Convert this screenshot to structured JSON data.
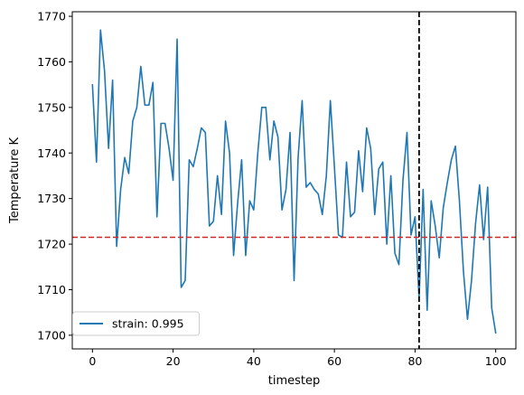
{
  "chart_data": {
    "type": "line",
    "title": "",
    "xlabel": "timestep",
    "ylabel": "Temperature K",
    "xlim": [
      -5,
      105
    ],
    "ylim": [
      1697,
      1771
    ],
    "xticks": [
      0,
      20,
      40,
      60,
      80,
      100
    ],
    "yticks": [
      1700,
      1710,
      1720,
      1730,
      1740,
      1750,
      1760,
      1770
    ],
    "grid": false,
    "legend_position": "lower-left",
    "series": [
      {
        "name": "strain: 0.995",
        "color": "#1f77b4",
        "x": [
          0,
          1,
          2,
          3,
          4,
          5,
          6,
          7,
          8,
          9,
          10,
          11,
          12,
          13,
          14,
          15,
          16,
          17,
          18,
          19,
          20,
          21,
          22,
          23,
          24,
          25,
          26,
          27,
          28,
          29,
          30,
          31,
          32,
          33,
          34,
          35,
          36,
          37,
          38,
          39,
          40,
          41,
          42,
          43,
          44,
          45,
          46,
          47,
          48,
          49,
          50,
          51,
          52,
          53,
          54,
          55,
          56,
          57,
          58,
          59,
          60,
          61,
          62,
          63,
          64,
          65,
          66,
          67,
          68,
          69,
          70,
          71,
          72,
          73,
          74,
          75,
          76,
          77,
          78,
          79,
          80,
          81,
          82,
          83,
          84,
          85,
          86,
          87,
          88,
          89,
          90,
          91,
          92,
          93,
          94,
          95,
          96,
          97,
          98,
          99,
          100
        ],
        "values": [
          1755,
          1738,
          1767,
          1758,
          1741,
          1756,
          1719.5,
          1732,
          1739,
          1735.5,
          1747,
          1750,
          1759,
          1750.5,
          1750.5,
          1755.5,
          1726,
          1746.5,
          1746.5,
          1741,
          1734,
          1765,
          1710.5,
          1712,
          1738.5,
          1737,
          1741,
          1745.5,
          1744.5,
          1724,
          1725,
          1735,
          1726.5,
          1747,
          1740,
          1717.5,
          1729,
          1738.5,
          1717.5,
          1729.5,
          1727.5,
          1740,
          1750,
          1750,
          1738.5,
          1747,
          1743.5,
          1727.5,
          1732,
          1744.5,
          1712,
          1739,
          1751.5,
          1732.5,
          1733.5,
          1732,
          1731,
          1726.5,
          1735,
          1751.5,
          1737,
          1722,
          1721.5,
          1738,
          1726,
          1727,
          1740.5,
          1731.5,
          1745.5,
          1741,
          1726.5,
          1736.5,
          1738,
          1720,
          1735,
          1718,
          1715.5,
          1734,
          1744.5,
          1722,
          1726,
          1708,
          1732,
          1705.5,
          1729.5,
          1724,
          1717,
          1728,
          1733.5,
          1738.5,
          1741.5,
          1729.5,
          1714,
          1703.5,
          1712,
          1724.5,
          1733,
          1721,
          1732.5,
          1706,
          1700.5
        ]
      }
    ],
    "reference_lines": [
      {
        "orientation": "horizontal",
        "value": 1721.5,
        "color": "#d62728",
        "style": "dashed"
      },
      {
        "orientation": "vertical",
        "value": 81,
        "color": "#000000",
        "style": "dashed"
      }
    ]
  }
}
